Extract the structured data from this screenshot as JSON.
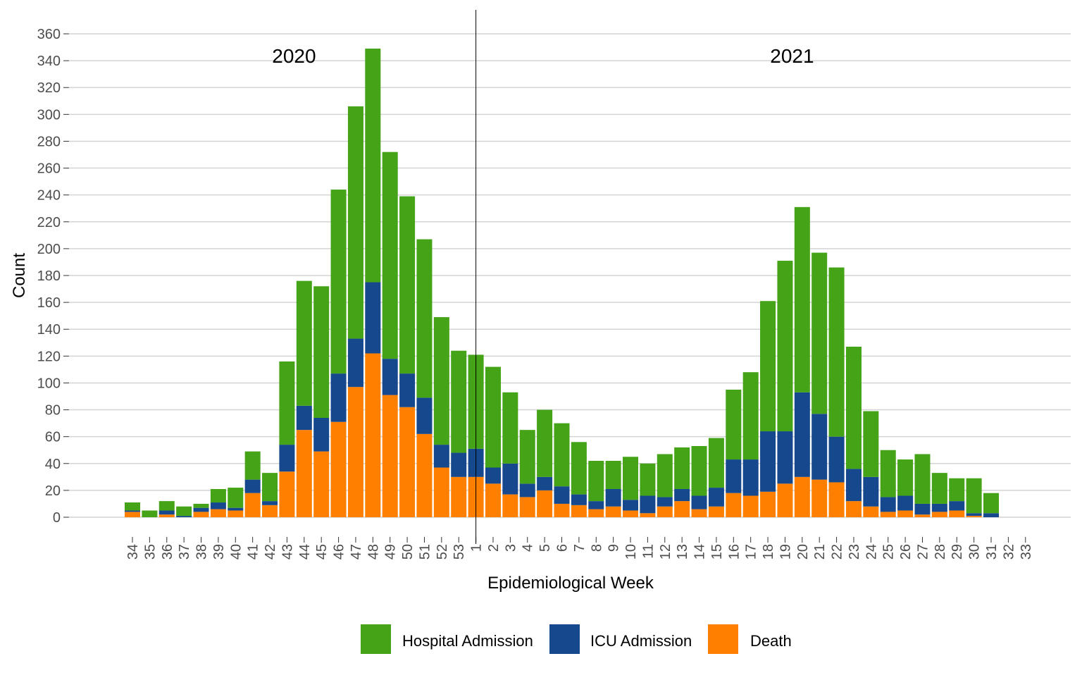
{
  "chart_data": {
    "type": "bar",
    "stacked": true,
    "title": "",
    "xlabel": "Epidemiological Week",
    "ylabel": "Count",
    "ylim": [
      0,
      360
    ],
    "yticks": [
      0,
      20,
      40,
      60,
      80,
      100,
      120,
      140,
      160,
      180,
      200,
      220,
      240,
      260,
      280,
      300,
      320,
      340,
      360
    ],
    "grid": true,
    "legend_position": "bottom",
    "annotations": [
      {
        "text": "2020",
        "at_category": "43"
      },
      {
        "text": "2021",
        "at_category": "19"
      }
    ],
    "year_divider_category": "1",
    "categories": [
      "34",
      "35",
      "36",
      "37",
      "38",
      "39",
      "40",
      "41",
      "42",
      "43",
      "44",
      "45",
      "46",
      "47",
      "48",
      "49",
      "50",
      "51",
      "52",
      "53",
      "1",
      "2",
      "3",
      "4",
      "5",
      "6",
      "7",
      "8",
      "9",
      "10",
      "11",
      "12",
      "13",
      "14",
      "15",
      "16",
      "17",
      "18",
      "19",
      "20",
      "21",
      "22",
      "23",
      "24",
      "25",
      "26",
      "27",
      "28",
      "29",
      "30",
      "31",
      "32",
      "33"
    ],
    "series": [
      {
        "name": "Death",
        "color": "#FF8000",
        "values": [
          4,
          0,
          2,
          0,
          4,
          6,
          5,
          18,
          9,
          34,
          65,
          49,
          71,
          97,
          122,
          91,
          82,
          62,
          37,
          30,
          30,
          25,
          17,
          15,
          20,
          10,
          9,
          6,
          8,
          5,
          3,
          8,
          12,
          6,
          8,
          18,
          16,
          19,
          25,
          30,
          28,
          26,
          12,
          8,
          4,
          5,
          2,
          4,
          5,
          1,
          0,
          0,
          0
        ]
      },
      {
        "name": "ICU Admission",
        "color": "#15488C",
        "values": [
          1,
          0,
          3,
          1,
          3,
          5,
          2,
          10,
          3,
          20,
          18,
          25,
          36,
          36,
          53,
          27,
          25,
          27,
          17,
          18,
          21,
          12,
          23,
          10,
          10,
          13,
          8,
          6,
          13,
          8,
          13,
          7,
          9,
          10,
          14,
          25,
          27,
          45,
          39,
          63,
          49,
          34,
          24,
          22,
          11,
          11,
          8,
          6,
          7,
          2,
          3,
          0,
          0
        ]
      },
      {
        "name": "Hospital Admission",
        "color": "#44A317",
        "values": [
          6,
          5,
          7,
          7,
          3,
          10,
          15,
          21,
          21,
          62,
          93,
          98,
          137,
          173,
          174,
          154,
          132,
          118,
          95,
          76,
          70,
          75,
          53,
          40,
          50,
          47,
          39,
          30,
          21,
          32,
          24,
          32,
          31,
          37,
          37,
          52,
          65,
          97,
          127,
          138,
          120,
          126,
          91,
          49,
          35,
          27,
          37,
          23,
          17,
          26,
          15,
          0,
          0
        ]
      }
    ],
    "legend": [
      "Hospital Admission",
      "ICU Admission",
      "Death"
    ]
  }
}
